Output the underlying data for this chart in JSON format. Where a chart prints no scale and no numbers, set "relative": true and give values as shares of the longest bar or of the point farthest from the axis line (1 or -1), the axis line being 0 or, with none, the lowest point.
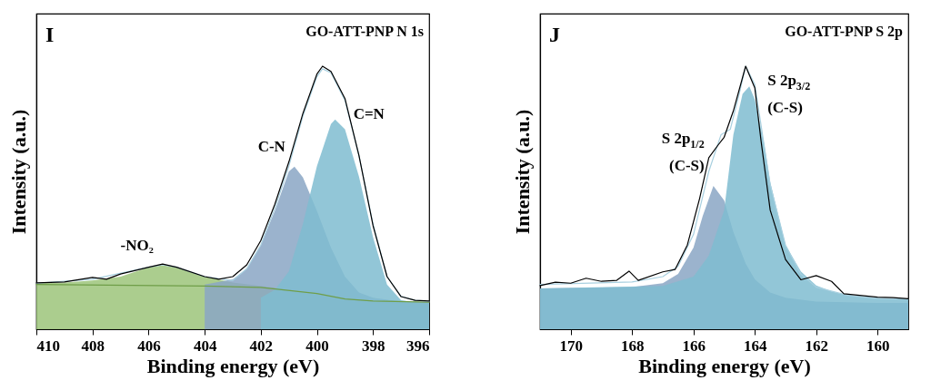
{
  "chart_data": [
    {
      "type": "line",
      "relative": true,
      "title": "GO-ATT-PNP N 1s",
      "xlabel": "Binding energy (eV)",
      "ylabel": "Intensity (a.u.)",
      "xlim": [
        410,
        396
      ],
      "xticks": [
        410,
        408,
        406,
        404,
        402,
        400,
        398,
        396
      ],
      "grid": false,
      "annotations": [
        "I"
      ],
      "series": [
        {
          "type": "area",
          "name": "-NO₂",
          "color": "#9cc47a",
          "x": [
            410,
            409,
            408,
            407,
            406,
            405.5,
            405,
            404,
            403,
            402,
            401,
            400,
            399,
            398,
            397,
            396
          ],
          "values": [
            0.175,
            0.178,
            0.185,
            0.2,
            0.235,
            0.243,
            0.235,
            0.2,
            0.178,
            0.165,
            0.15,
            0.136,
            0.115,
            0.107,
            0.104,
            0.103
          ]
        },
        {
          "type": "area",
          "name": "C-N",
          "color": "#8aa6c4",
          "x": [
            404,
            403,
            402.5,
            402,
            401.5,
            401,
            400.8,
            400.5,
            400,
            399.5,
            399,
            398.5,
            398,
            397,
            396
          ],
          "values": [
            0.17,
            0.19,
            0.23,
            0.32,
            0.45,
            0.6,
            0.618,
            0.578,
            0.45,
            0.31,
            0.2,
            0.14,
            0.12,
            0.105,
            0.103
          ]
        },
        {
          "type": "area",
          "name": "C=N",
          "color": "#7fbcd0",
          "x": [
            402,
            401.5,
            401,
            400.5,
            400,
            399.5,
            399.35,
            399,
            398.5,
            398,
            397.5,
            397,
            396.5,
            396
          ],
          "values": [
            0.12,
            0.15,
            0.22,
            0.4,
            0.62,
            0.78,
            0.797,
            0.76,
            0.58,
            0.35,
            0.17,
            0.11,
            0.103,
            0.102
          ]
        },
        {
          "color": "#6f9e48",
          "x": [
            410,
            404,
            402,
            400,
            399,
            398,
            396
          ],
          "values": [
            0.17,
            0.164,
            0.159,
            0.136,
            0.115,
            0.107,
            0.103
          ]
        },
        {
          "color": "#a8d0e0",
          "x": [
            410,
            408,
            406,
            405.5,
            405,
            404,
            403,
            402.5,
            402,
            401.5,
            401,
            400.5,
            400,
            399.8,
            399.5,
            399,
            398.5,
            398,
            397.5,
            397,
            396.5,
            396
          ],
          "values": [
            0.175,
            0.19,
            0.236,
            0.245,
            0.236,
            0.2,
            0.185,
            0.23,
            0.32,
            0.46,
            0.62,
            0.81,
            0.96,
            0.99,
            0.975,
            0.87,
            0.66,
            0.4,
            0.2,
            0.125,
            0.11,
            0.106
          ]
        },
        {
          "color": "#000000",
          "x": [
            410,
            409,
            408,
            407.5,
            407,
            406,
            405.5,
            405,
            404,
            403.5,
            403,
            402.5,
            402,
            401.5,
            401,
            400.5,
            400,
            399.8,
            399.5,
            399,
            398.5,
            398,
            397.5,
            397,
            396.5,
            396
          ],
          "values": [
            0.176,
            0.18,
            0.197,
            0.19,
            0.21,
            0.236,
            0.248,
            0.236,
            0.2,
            0.19,
            0.2,
            0.245,
            0.337,
            0.475,
            0.636,
            0.82,
            0.97,
            1,
            0.98,
            0.877,
            0.66,
            0.394,
            0.2,
            0.124,
            0.11,
            0.107
          ]
        }
      ]
    },
    {
      "type": "line",
      "relative": true,
      "title": "GO-ATT-PNP S 2p",
      "xlabel": "Binding energy (eV)",
      "ylabel": "Intensity (a.u.)",
      "xlim": [
        171,
        159
      ],
      "xticks": [
        170,
        168,
        166,
        164,
        162,
        160
      ],
      "grid": false,
      "annotations": [
        "J"
      ],
      "series": [
        {
          "type": "area",
          "name": "S 2p$_{1/2}$\n(C-S)",
          "color": "#8aa6c4",
          "x": [
            171,
            168,
            167,
            166.5,
            166,
            165.7,
            165.35,
            165,
            164.7,
            164.3,
            164,
            163.5,
            163,
            162,
            160,
            159
          ],
          "values": [
            0.155,
            0.16,
            0.175,
            0.21,
            0.31,
            0.43,
            0.545,
            0.49,
            0.37,
            0.25,
            0.19,
            0.14,
            0.12,
            0.105,
            0.1,
            0.1
          ]
        },
        {
          "type": "area",
          "name": "S 2p$_{3/2}$\n(C-S)",
          "color": "#7fbcd0",
          "x": [
            171,
            167,
            166,
            165.5,
            165,
            164.7,
            164.4,
            164.18,
            164,
            163.7,
            163.5,
            163,
            162.5,
            162,
            161.5,
            161,
            160,
            159
          ],
          "values": [
            0.155,
            0.165,
            0.2,
            0.28,
            0.453,
            0.74,
            0.895,
            0.923,
            0.873,
            0.707,
            0.56,
            0.32,
            0.22,
            0.166,
            0.144,
            0.13,
            0.12,
            0.115
          ]
        },
        {
          "color": "#a8d0e0",
          "x": [
            171,
            168,
            167,
            166.5,
            166,
            165.5,
            165.1,
            164.8,
            164.5,
            164.3,
            164,
            163.5,
            163,
            162.5,
            162,
            161,
            160,
            159
          ],
          "values": [
            0.17,
            0.18,
            0.2,
            0.24,
            0.36,
            0.6,
            0.74,
            0.76,
            0.9,
            1,
            0.93,
            0.55,
            0.32,
            0.21,
            0.16,
            0.13,
            0.117,
            0.115
          ]
        },
        {
          "color": "#000000",
          "x": [
            171,
            170.5,
            170,
            169.5,
            169,
            168.5,
            168.1,
            167.8,
            167,
            166.6,
            166.2,
            165.8,
            165.5,
            165.2,
            165,
            164.7,
            164.3,
            164,
            163.8,
            163.5,
            163,
            162.5,
            162,
            161.5,
            161.1,
            160,
            159.5,
            159
          ],
          "values": [
            0.166,
            0.179,
            0.175,
            0.194,
            0.182,
            0.186,
            0.221,
            0.186,
            0.218,
            0.227,
            0.32,
            0.497,
            0.652,
            0.7,
            0.73,
            0.83,
            1,
            0.917,
            0.718,
            0.453,
            0.265,
            0.188,
            0.204,
            0.182,
            0.135,
            0.122,
            0.12,
            0.116
          ]
        }
      ]
    }
  ]
}
